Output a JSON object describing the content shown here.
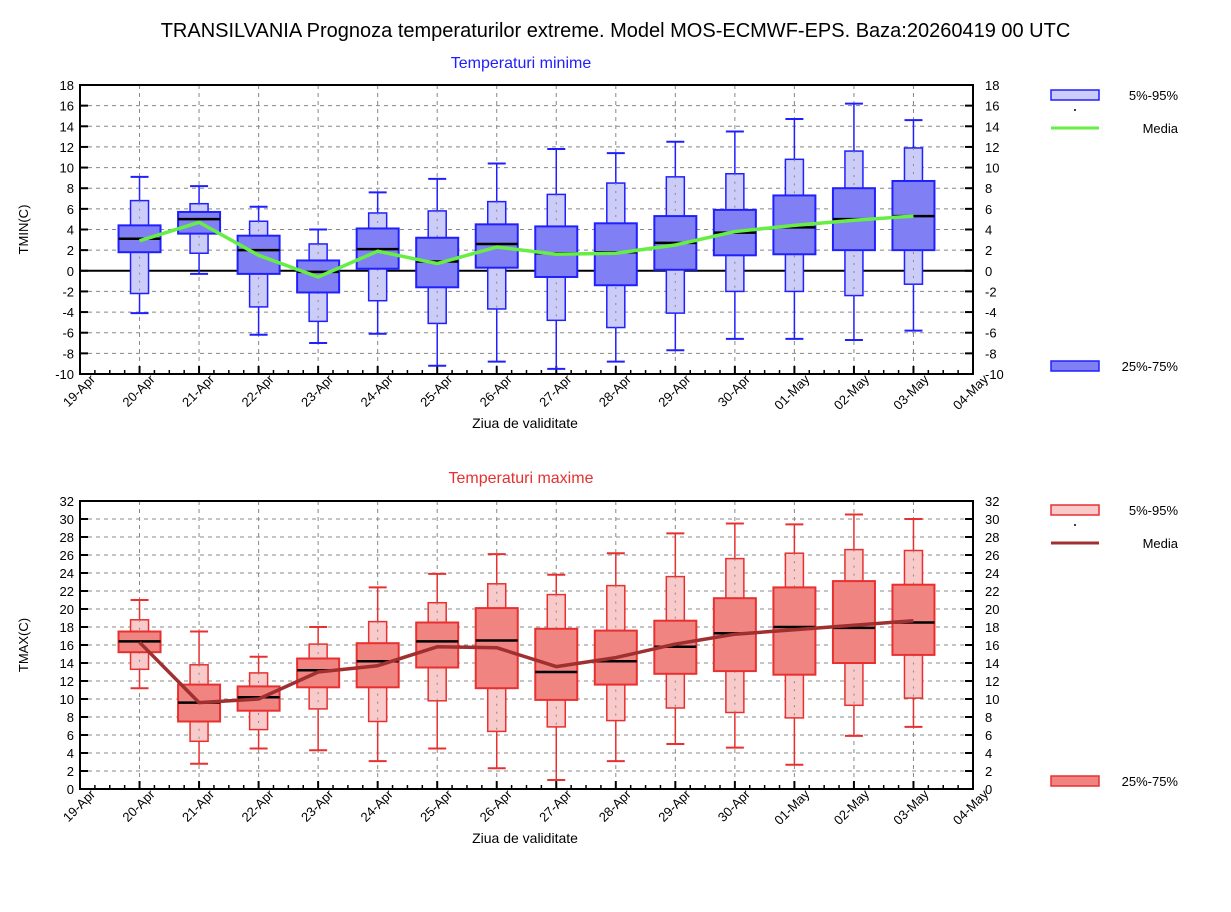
{
  "title": "TRANSILVANIA  Prognoza temperaturilor extreme.  Model MOS-ECMWF-EPS. Baza:20260419 00 UTC",
  "chart_data": [
    {
      "type": "box",
      "title": "Temperaturi minime",
      "title_color": "#2020ff",
      "ylabel": "TMIN(C)",
      "xlabel": "Ziua de validitate",
      "ylim": [
        -10,
        18
      ],
      "ytick_step": 2,
      "x_ticks": [
        "19-Apr",
        "20-Apr",
        "21-Apr",
        "22-Apr",
        "23-Apr",
        "24-Apr",
        "25-Apr",
        "26-Apr",
        "27-Apr",
        "28-Apr",
        "29-Apr",
        "30-Apr",
        "01-May",
        "02-May",
        "03-May",
        "04-May"
      ],
      "categories": [
        "20-Apr",
        "21-Apr",
        "22-Apr",
        "23-Apr",
        "24-Apr",
        "25-Apr",
        "26-Apr",
        "27-Apr",
        "28-Apr",
        "29-Apr",
        "30-Apr",
        "01-May",
        "02-May",
        "03-May"
      ],
      "whisker_low": [
        -4.1,
        -0.3,
        -6.2,
        -7.0,
        -6.1,
        -9.2,
        -8.8,
        -9.5,
        -8.8,
        -7.7,
        -6.6,
        -6.6,
        -6.7,
        -5.8
      ],
      "p5": [
        -2.2,
        1.7,
        -3.5,
        -4.9,
        -2.9,
        -5.1,
        -3.7,
        -4.8,
        -5.5,
        -4.1,
        -2.0,
        -2.0,
        -2.4,
        -1.3
      ],
      "p25": [
        1.8,
        3.6,
        -0.3,
        -2.1,
        0.2,
        -1.6,
        0.3,
        -0.6,
        -1.4,
        0.1,
        1.5,
        1.6,
        2.0,
        2.0
      ],
      "median": [
        3.1,
        5.0,
        2.0,
        -0.1,
        2.1,
        0.9,
        2.6,
        1.7,
        1.8,
        2.7,
        3.7,
        4.2,
        5.0,
        5.3
      ],
      "p75": [
        4.4,
        5.7,
        3.4,
        1.0,
        4.1,
        3.2,
        4.5,
        4.3,
        4.6,
        5.3,
        5.9,
        7.3,
        8.0,
        8.7
      ],
      "p95": [
        6.8,
        6.5,
        4.8,
        2.6,
        5.6,
        5.8,
        6.7,
        7.4,
        8.5,
        9.1,
        9.4,
        10.8,
        11.6,
        11.9
      ],
      "whisker_high": [
        9.1,
        8.2,
        6.2,
        4.0,
        7.6,
        8.9,
        10.4,
        11.8,
        11.4,
        12.5,
        13.5,
        14.7,
        16.2,
        14.6
      ],
      "mean": [
        2.9,
        4.7,
        1.5,
        -0.6,
        1.9,
        0.7,
        2.3,
        1.6,
        1.7,
        2.5,
        3.8,
        4.4,
        4.9,
        5.3
      ],
      "zero_line": true,
      "colors": {
        "outer_fill": "#ccccf8",
        "inner_fill": "#8080f4",
        "stroke": "#2020ff",
        "mean": "#66ee44"
      },
      "legend": {
        "outer": "5%-95%",
        "mean": "Media",
        "inner": "25%-75%"
      }
    },
    {
      "type": "box",
      "title": "Temperaturi maxime",
      "title_color": "#e83030",
      "ylabel": "TMAX(C)",
      "xlabel": "Ziua de validitate",
      "ylim": [
        0,
        32
      ],
      "ytick_step": 2,
      "x_ticks": [
        "19-Apr",
        "20-Apr",
        "21-Apr",
        "22-Apr",
        "23-Apr",
        "24-Apr",
        "25-Apr",
        "26-Apr",
        "27-Apr",
        "28-Apr",
        "29-Apr",
        "30-Apr",
        "01-May",
        "02-May",
        "03-May",
        "04-May"
      ],
      "categories": [
        "20-Apr",
        "21-Apr",
        "22-Apr",
        "23-Apr",
        "24-Apr",
        "25-Apr",
        "26-Apr",
        "27-Apr",
        "28-Apr",
        "29-Apr",
        "30-Apr",
        "01-May",
        "02-May",
        "03-May"
      ],
      "whisker_low": [
        11.2,
        2.8,
        4.5,
        4.3,
        3.1,
        4.5,
        2.3,
        1.0,
        3.1,
        5.0,
        4.6,
        2.7,
        5.9,
        6.9
      ],
      "p5": [
        13.3,
        5.3,
        6.6,
        8.9,
        7.5,
        9.8,
        6.4,
        6.9,
        7.6,
        9.0,
        8.5,
        7.9,
        9.3,
        10.1
      ],
      "p25": [
        15.2,
        7.5,
        8.7,
        11.3,
        11.3,
        13.5,
        11.2,
        9.9,
        11.6,
        12.8,
        13.1,
        12.7,
        14.0,
        14.9
      ],
      "median": [
        16.4,
        9.6,
        10.2,
        13.2,
        14.2,
        16.4,
        16.5,
        13.0,
        14.2,
        15.8,
        17.3,
        18.0,
        17.9,
        18.5
      ],
      "p75": [
        17.5,
        11.6,
        11.4,
        14.5,
        16.2,
        18.5,
        20.1,
        17.8,
        17.6,
        18.7,
        21.2,
        22.4,
        23.1,
        22.7
      ],
      "p95": [
        18.8,
        13.8,
        12.9,
        16.1,
        18.6,
        20.7,
        22.8,
        21.6,
        22.6,
        23.6,
        25.6,
        26.2,
        26.6,
        26.5
      ],
      "whisker_high": [
        21.0,
        17.5,
        14.7,
        18.0,
        22.4,
        23.9,
        26.1,
        23.8,
        26.2,
        28.4,
        29.5,
        29.4,
        30.5,
        30.0
      ],
      "mean": [
        16.3,
        9.6,
        10.0,
        13.0,
        13.7,
        15.8,
        15.7,
        13.6,
        14.6,
        16.1,
        17.2,
        17.7,
        18.2,
        18.7
      ],
      "zero_line": false,
      "colors": {
        "outer_fill": "#f8caca",
        "inner_fill": "#f08480",
        "stroke": "#e83030",
        "mean": "#a03030"
      },
      "legend": {
        "outer": "5%-95%",
        "mean": "Media",
        "inner": "25%-75%"
      }
    }
  ]
}
